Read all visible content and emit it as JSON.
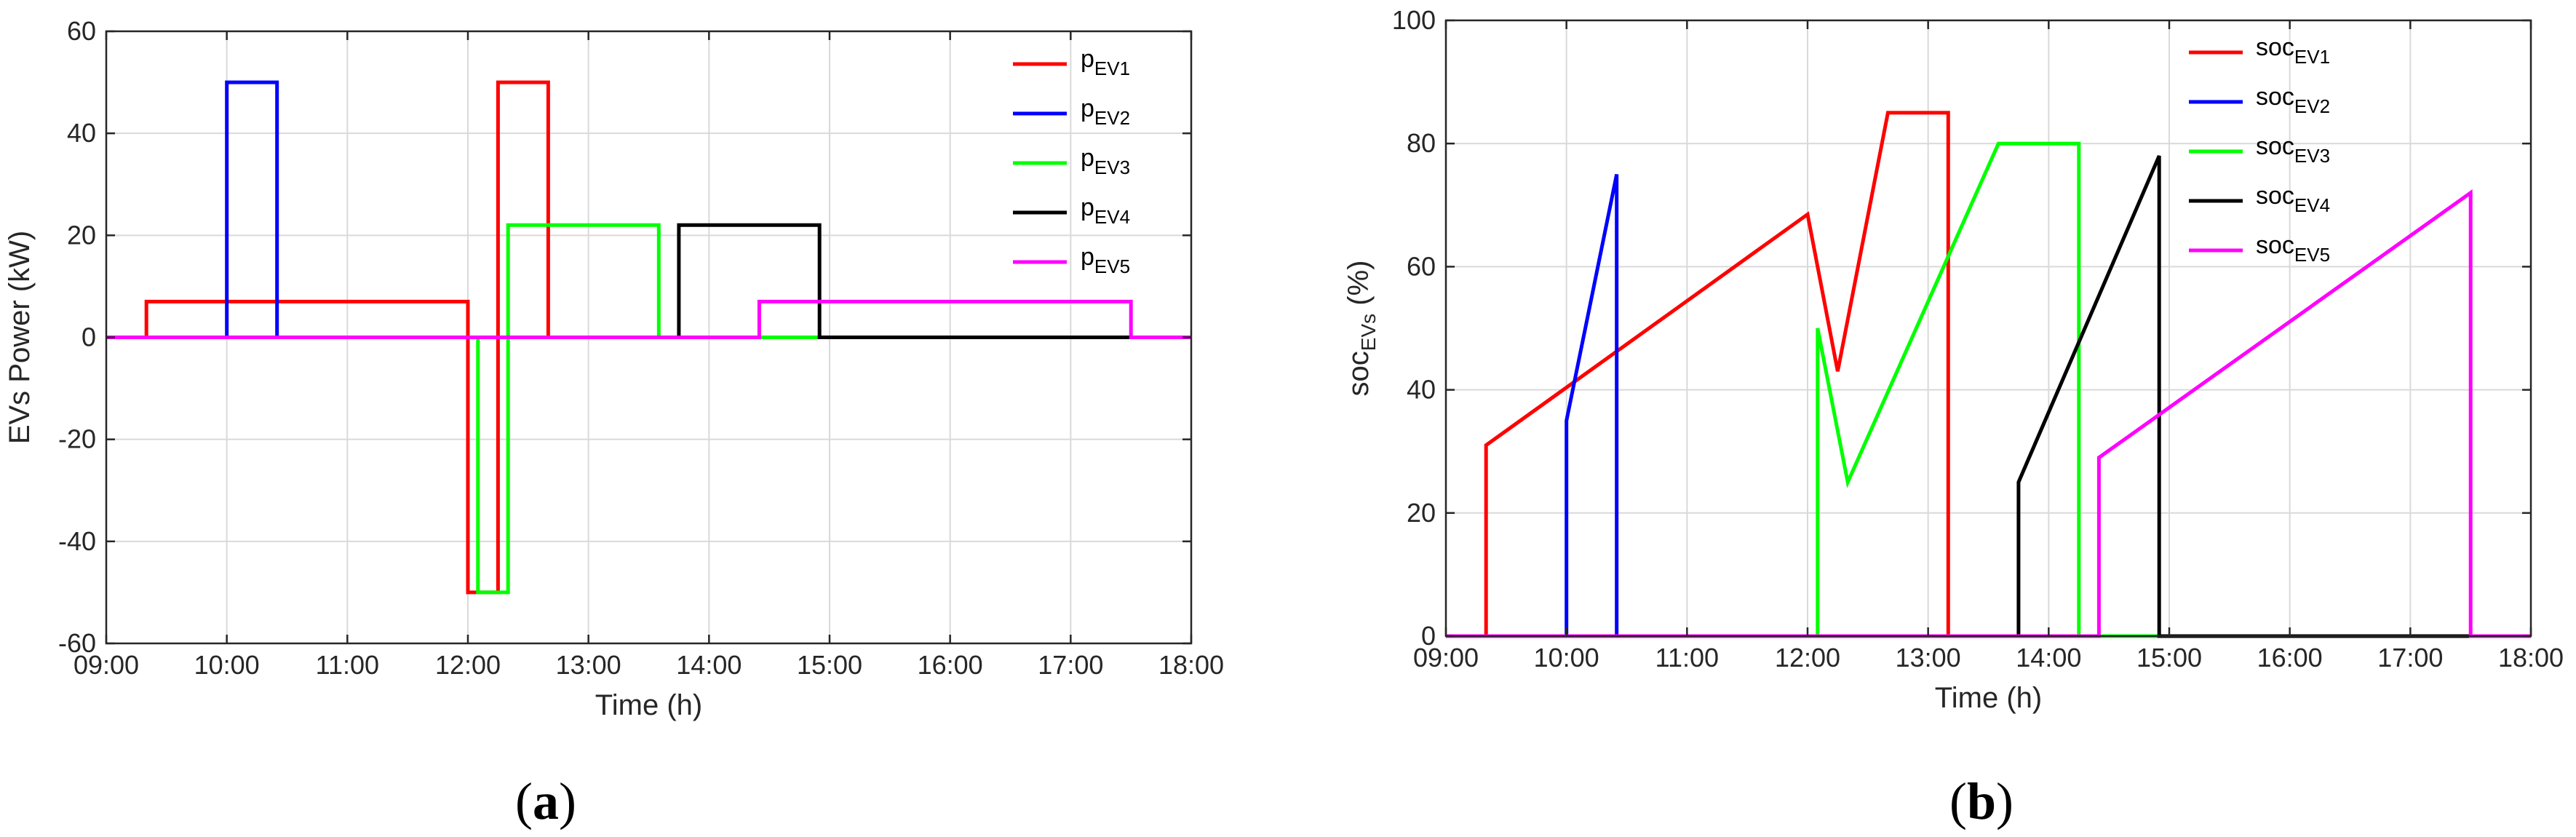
{
  "chart_data": [
    {
      "type": "line",
      "panel_label": "(a)",
      "xlabel": "Time (h)",
      "ylabel": "EVs Power (kW)",
      "xlim": [
        "09:00",
        "18:00"
      ],
      "ylim": [
        -60,
        60
      ],
      "x_ticks": [
        "09:00",
        "10:00",
        "11:00",
        "12:00",
        "13:00",
        "14:00",
        "15:00",
        "16:00",
        "17:00",
        "18:00"
      ],
      "y_ticks": [
        "-60",
        "-40",
        "-20",
        "0",
        "20",
        "40",
        "60"
      ],
      "y_tick_values": [
        -60,
        -40,
        -20,
        0,
        20,
        40,
        60
      ],
      "grid": true,
      "legend_position": "top-right",
      "series": [
        {
          "name": "p",
          "name_sub": "EV1",
          "color": "#ff0000",
          "points": [
            [
              "09:00",
              0
            ],
            [
              "09:20",
              0
            ],
            [
              "09:20",
              7
            ],
            [
              "12:00",
              7
            ],
            [
              "12:00",
              -50
            ],
            [
              "12:15",
              -50
            ],
            [
              "12:15",
              5
            ],
            [
              "12:15",
              50
            ],
            [
              "12:40",
              50
            ],
            [
              "12:40",
              0
            ],
            [
              "18:00",
              0
            ]
          ]
        },
        {
          "name": "p",
          "name_sub": "EV2",
          "color": "#0000ff",
          "points": [
            [
              "09:00",
              0
            ],
            [
              "10:00",
              0
            ],
            [
              "10:00",
              50
            ],
            [
              "10:25",
              50
            ],
            [
              "10:25",
              0
            ],
            [
              "18:00",
              0
            ]
          ]
        },
        {
          "name": "p",
          "name_sub": "EV3",
          "color": "#00ff00",
          "points": [
            [
              "09:00",
              0
            ],
            [
              "12:05",
              0
            ],
            [
              "12:05",
              -50
            ],
            [
              "12:20",
              -50
            ],
            [
              "12:20",
              22
            ],
            [
              "13:35",
              22
            ],
            [
              "13:35",
              0
            ],
            [
              "18:00",
              0
            ]
          ]
        },
        {
          "name": "p",
          "name_sub": "EV4",
          "color": "#000000",
          "points": [
            [
              "09:00",
              0
            ],
            [
              "13:45",
              0
            ],
            [
              "13:45",
              22
            ],
            [
              "14:55",
              22
            ],
            [
              "14:55",
              0
            ],
            [
              "18:00",
              0
            ]
          ]
        },
        {
          "name": "p",
          "name_sub": "EV5",
          "color": "#ff00ff",
          "points": [
            [
              "09:00",
              0
            ],
            [
              "14:25",
              0
            ],
            [
              "14:25",
              7
            ],
            [
              "17:30",
              7
            ],
            [
              "17:30",
              0
            ],
            [
              "18:00",
              0
            ]
          ]
        }
      ]
    },
    {
      "type": "line",
      "panel_label": "(b)",
      "xlabel": "Time (h)",
      "ylabel": "soc",
      "ylabel_sub": "EVs",
      "ylabel_suffix": " (%)",
      "xlim": [
        "09:00",
        "18:00"
      ],
      "ylim": [
        0,
        100
      ],
      "x_ticks": [
        "09:00",
        "10:00",
        "11:00",
        "12:00",
        "13:00",
        "14:00",
        "15:00",
        "16:00",
        "17:00",
        "18:00"
      ],
      "y_ticks": [
        "0",
        "20",
        "40",
        "60",
        "80",
        "100"
      ],
      "y_tick_values": [
        0,
        20,
        40,
        60,
        80,
        100
      ],
      "grid": true,
      "legend_position": "top-right",
      "series": [
        {
          "name": "soc",
          "name_sub": "EV1",
          "color": "#ff0000",
          "points": [
            [
              "09:00",
              0
            ],
            [
              "09:20",
              0
            ],
            [
              "09:20",
              31
            ],
            [
              "12:00",
              68.5
            ],
            [
              "12:15",
              43
            ],
            [
              "12:40",
              85
            ],
            [
              "13:10",
              85
            ],
            [
              "13:10",
              0
            ],
            [
              "18:00",
              0
            ]
          ]
        },
        {
          "name": "soc",
          "name_sub": "EV2",
          "color": "#0000ff",
          "points": [
            [
              "09:00",
              0
            ],
            [
              "10:00",
              0
            ],
            [
              "10:00",
              35
            ],
            [
              "10:25",
              75
            ],
            [
              "10:25",
              0
            ],
            [
              "18:00",
              0
            ]
          ]
        },
        {
          "name": "soc",
          "name_sub": "EV3",
          "color": "#00ff00",
          "points": [
            [
              "09:00",
              0
            ],
            [
              "12:05",
              0
            ],
            [
              "12:05",
              50
            ],
            [
              "12:20",
              25
            ],
            [
              "13:35",
              80
            ],
            [
              "14:15",
              80
            ],
            [
              "14:15",
              0
            ],
            [
              "18:00",
              0
            ]
          ]
        },
        {
          "name": "soc",
          "name_sub": "EV4",
          "color": "#000000",
          "points": [
            [
              "09:00",
              0
            ],
            [
              "13:45",
              0
            ],
            [
              "13:45",
              25
            ],
            [
              "14:55",
              78
            ],
            [
              "14:55",
              0
            ],
            [
              "18:00",
              0
            ]
          ]
        },
        {
          "name": "soc",
          "name_sub": "EV5",
          "color": "#ff00ff",
          "points": [
            [
              "09:00",
              0
            ],
            [
              "14:25",
              0
            ],
            [
              "14:25",
              29
            ],
            [
              "17:30",
              72
            ],
            [
              "17:30",
              0
            ],
            [
              "18:00",
              0
            ]
          ]
        }
      ]
    }
  ]
}
